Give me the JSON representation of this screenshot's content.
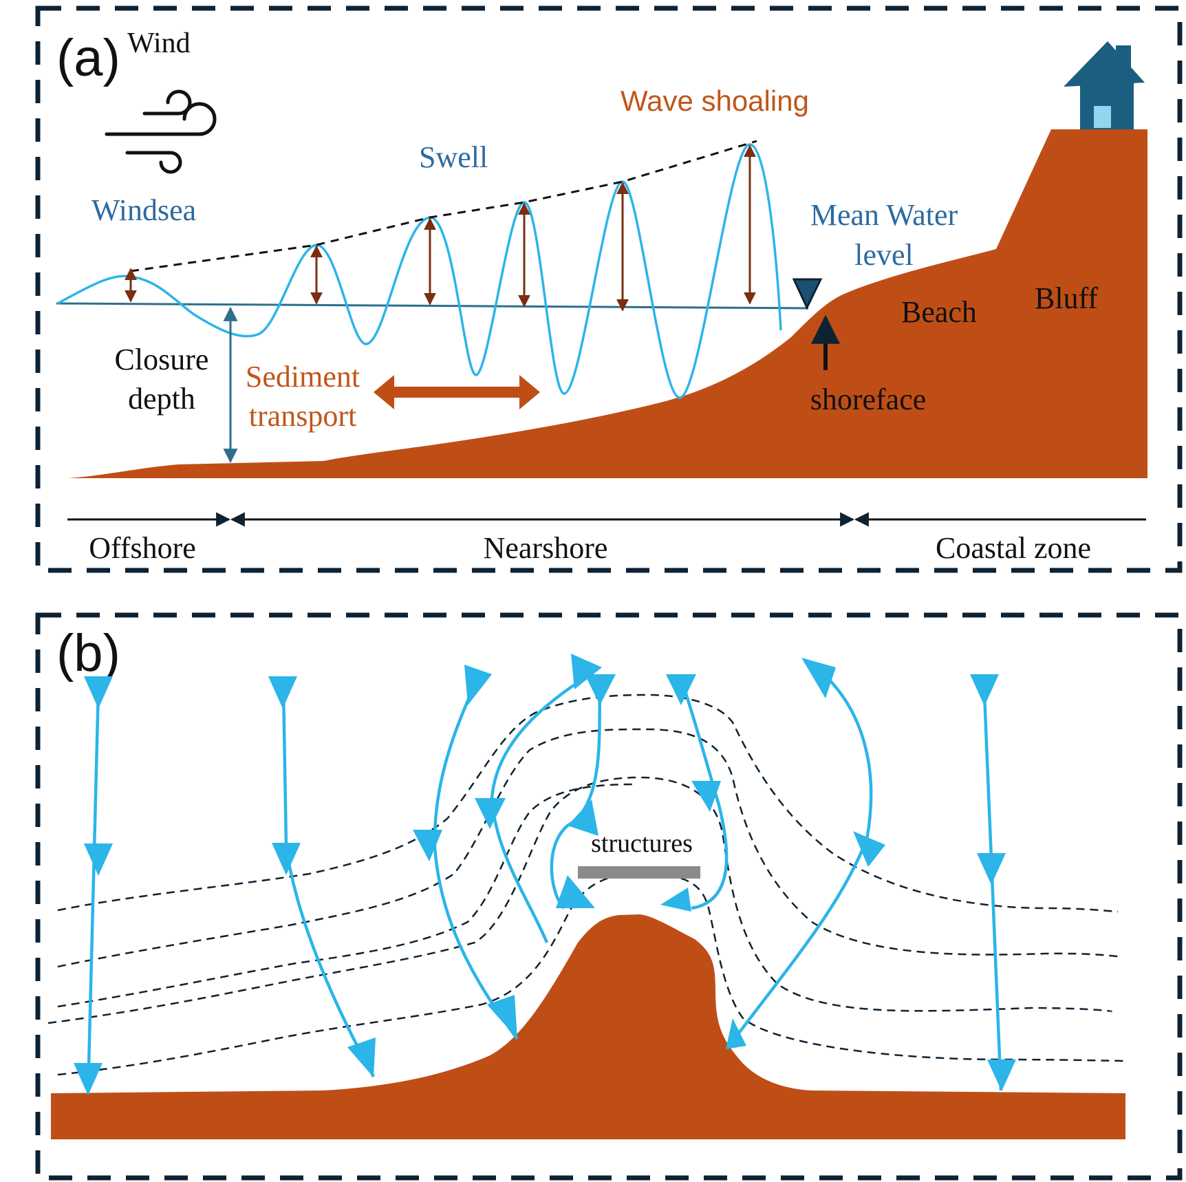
{
  "colors": {
    "frame": "#0d2233",
    "sediment": "#bf4e16",
    "wave": "#2bb5e8",
    "water_line": "#2d6f8c",
    "label_blue": "#2d6aa0",
    "label_orange": "#c0561a",
    "arrow_brown": "#7a2e12",
    "house": "#1a5f80",
    "house_window": "#8fd6ee",
    "structure": "#8a8a8a",
    "text_dark": "#111111"
  },
  "panel_a": {
    "panel_label": "(a)",
    "wind_label": "Wind",
    "wind_icon": "wind-icon",
    "house_icon": "house-icon",
    "labels": {
      "windsea": "Windsea",
      "swell": "Swell",
      "wave_shoaling": "Wave shoaling",
      "mean_water_1": "Mean Water",
      "mean_water_2": "level",
      "beach": "Beach",
      "bluff": "Bluff",
      "closure_1": "Closure",
      "closure_2": "depth",
      "sediment_1": "Sediment",
      "sediment_2": "transport",
      "shoreface": "shoreface"
    },
    "zones": {
      "offshore": "Offshore",
      "nearshore": "Nearshore",
      "coastal": "Coastal zone"
    }
  },
  "panel_b": {
    "panel_label": "(b)",
    "structures_label": "structures"
  }
}
